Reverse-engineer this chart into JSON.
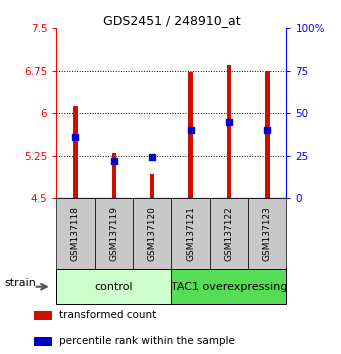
{
  "title": "GDS2451 / 248910_at",
  "samples": [
    "GSM137118",
    "GSM137119",
    "GSM137120",
    "GSM137121",
    "GSM137122",
    "GSM137123"
  ],
  "transformed_counts": [
    6.12,
    5.3,
    4.92,
    6.73,
    6.85,
    6.75
  ],
  "percentile_ranks": [
    36,
    22,
    24,
    40,
    45,
    40
  ],
  "ymin": 4.5,
  "ymax": 7.5,
  "yticks": [
    4.5,
    5.25,
    6.0,
    6.75,
    7.5
  ],
  "ytick_labels": [
    "4.5",
    "5.25",
    "6",
    "6.75",
    "7.5"
  ],
  "right_yticks": [
    0,
    25,
    50,
    75,
    100
  ],
  "right_ytick_labels": [
    "0",
    "25",
    "50",
    "75",
    "100%"
  ],
  "bar_color": "#CC1100",
  "dot_color": "#0000CC",
  "baseline": 4.5,
  "groups": [
    {
      "label": "control",
      "samples": [
        0,
        1,
        2
      ],
      "color": "#ccffcc"
    },
    {
      "label": "TAC1 overexpressing",
      "samples": [
        3,
        4,
        5
      ],
      "color": "#55dd55"
    }
  ],
  "strain_label": "strain",
  "legend_items": [
    {
      "color": "#CC1100",
      "label": "transformed count"
    },
    {
      "color": "#0000CC",
      "label": "percentile rank within the sample"
    }
  ],
  "grid_dotted_at": [
    5.25,
    6.0,
    6.75
  ],
  "background_color": "#ffffff"
}
